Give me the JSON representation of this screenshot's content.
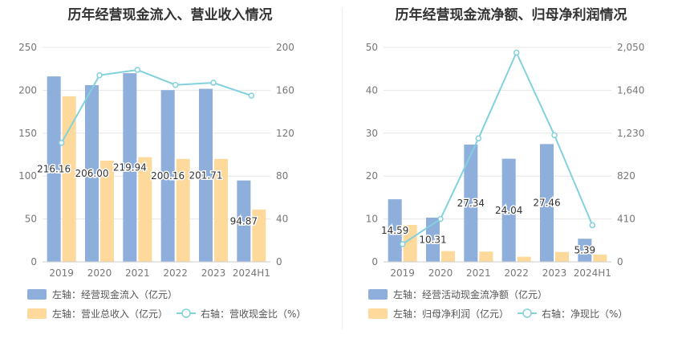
{
  "colors": {
    "bar_primary": "#8eaedc",
    "bar_secondary": "#fdd99b",
    "line": "#82d1dc",
    "axis_text": "#777777",
    "grid": "#e6e6e6",
    "title": "#333333",
    "label_text": "#333333"
  },
  "chart_data": [
    {
      "type": "bar",
      "title": "历年经营现金流入、营业收入情况",
      "categories": [
        "2019",
        "2020",
        "2021",
        "2022",
        "2023",
        "2024H1"
      ],
      "y_left": {
        "ticks": [
          "0",
          "50",
          "100",
          "150",
          "200",
          "250"
        ],
        "ylim": [
          0,
          250
        ]
      },
      "y_right": {
        "ticks": [
          "0",
          "40",
          "80",
          "120",
          "160",
          "200"
        ],
        "ylim": [
          0,
          200
        ]
      },
      "series": [
        {
          "name": "左轴：经营现金流入（亿元）",
          "kind": "bar",
          "axis": "left",
          "values": [
            216.16,
            206.0,
            219.94,
            200.16,
            201.71,
            94.87
          ],
          "labels": [
            "216.16",
            "206.00",
            "219.94",
            "200.16",
            "201.71",
            "94.87"
          ]
        },
        {
          "name": "左轴：营业总收入（亿元）",
          "kind": "bar",
          "axis": "left",
          "values": [
            193,
            118,
            122,
            120,
            120,
            61
          ]
        },
        {
          "name": "右轴：营收现金比（%）",
          "kind": "line",
          "axis": "right",
          "values": [
            111,
            174,
            179,
            165,
            167,
            155
          ]
        }
      ],
      "grid": true,
      "legend": "bottom"
    },
    {
      "type": "bar",
      "title": "历年经营现金流净额、归母净利润情况",
      "categories": [
        "2019",
        "2020",
        "2021",
        "2022",
        "2023",
        "2024H1"
      ],
      "y_left": {
        "ticks": [
          "0",
          "10",
          "20",
          "30",
          "40",
          "50"
        ],
        "ylim": [
          0,
          50
        ]
      },
      "y_right": {
        "ticks": [
          "0",
          "410",
          "820",
          "1,230",
          "1,640",
          "2,050"
        ],
        "ylim": [
          0,
          2050
        ]
      },
      "series": [
        {
          "name": "左轴：经营活动现金流净额（亿元）",
          "kind": "bar",
          "axis": "left",
          "values": [
            14.59,
            10.31,
            27.34,
            24.04,
            27.46,
            5.39
          ],
          "labels": [
            "14.59",
            "10.31",
            "27.34",
            "24.04",
            "27.46",
            "5.39"
          ]
        },
        {
          "name": "左轴：归母净利润（亿元）",
          "kind": "bar",
          "axis": "left",
          "values": [
            8.6,
            2.5,
            2.4,
            1.2,
            2.3,
            1.7
          ]
        },
        {
          "name": "右轴：净现比（%）",
          "kind": "line",
          "axis": "right",
          "values": [
            170,
            410,
            1180,
            2000,
            1210,
            350
          ]
        }
      ],
      "grid": true,
      "legend": "bottom"
    }
  ]
}
